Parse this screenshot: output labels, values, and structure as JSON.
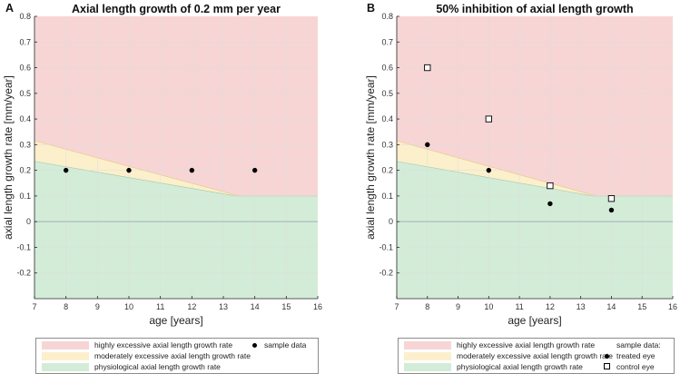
{
  "colors": {
    "highly": "#f7d5d5",
    "moderately": "#fcefcc",
    "physiological": "#d3ecd8",
    "grid": "#dcdcdc",
    "axis": "#262626",
    "zero_line": "#9aa7b4"
  },
  "chart_data": [
    {
      "type": "scatter",
      "panel_label": "A",
      "title": "Axial length growth of 0.2 mm per year",
      "xlabel": "age [years]",
      "ylabel": "axial length growth rate [mm/year]",
      "xlim": [
        7,
        16
      ],
      "ylim": [
        -0.3,
        0.8
      ],
      "xticks": [
        "7",
        "8",
        "9",
        "10",
        "11",
        "12",
        "13",
        "14",
        "15",
        "16"
      ],
      "yticks": [
        "-0.2",
        "-0.1",
        "0",
        "0.1",
        "0.2",
        "0.3",
        "0.4",
        "0.5",
        "0.6",
        "0.7",
        "0.8"
      ],
      "grid": true,
      "zones": {
        "physiological_upper": [
          [
            7,
            0.235
          ],
          [
            13.4,
            0.1
          ],
          [
            16,
            0.1
          ]
        ],
        "moderately_upper": [
          [
            7,
            0.315
          ],
          [
            13.5,
            0.1
          ],
          [
            16,
            0.1
          ]
        ]
      },
      "series": [
        {
          "name": "sample data",
          "marker": "filled-circle",
          "x": [
            8,
            10,
            12,
            14
          ],
          "y": [
            0.2,
            0.2,
            0.2,
            0.2
          ]
        }
      ],
      "legend": {
        "zone_labels": [
          "highly excessive axial length growth rate",
          "moderately excessive axial length growth rate",
          "physiological axial length growth rate"
        ],
        "marker_labels": [
          "sample data"
        ]
      }
    },
    {
      "type": "scatter",
      "panel_label": "B",
      "title": "50% inhibition of axial length growth",
      "xlabel": "age [years]",
      "ylabel": "axial length growth rate [mm/year]",
      "xlim": [
        7,
        16
      ],
      "ylim": [
        -0.3,
        0.8
      ],
      "xticks": [
        "7",
        "8",
        "9",
        "10",
        "11",
        "12",
        "13",
        "14",
        "15",
        "16"
      ],
      "yticks": [
        "-0.2",
        "-0.1",
        "0",
        "0.1",
        "0.2",
        "0.3",
        "0.4",
        "0.5",
        "0.6",
        "0.7",
        "0.8"
      ],
      "grid": true,
      "zones": {
        "physiological_upper": [
          [
            7,
            0.235
          ],
          [
            13.4,
            0.1
          ],
          [
            16,
            0.1
          ]
        ],
        "moderately_upper": [
          [
            7,
            0.315
          ],
          [
            13.5,
            0.1
          ],
          [
            16,
            0.1
          ]
        ]
      },
      "series": [
        {
          "name": "treated eye",
          "marker": "filled-circle",
          "x": [
            8,
            10,
            12,
            14
          ],
          "y": [
            0.3,
            0.2,
            0.07,
            0.045
          ]
        },
        {
          "name": "control eye",
          "marker": "open-square",
          "x": [
            8,
            10,
            12,
            14
          ],
          "y": [
            0.6,
            0.4,
            0.14,
            0.09
          ]
        }
      ],
      "legend": {
        "zone_labels": [
          "highly excessive axial length growth rate",
          "moderately excessive axial length growth rate",
          "physiological axial length growth rate"
        ],
        "marker_title": "sample data:",
        "marker_labels": [
          "treated eye",
          "control eye"
        ]
      }
    }
  ]
}
